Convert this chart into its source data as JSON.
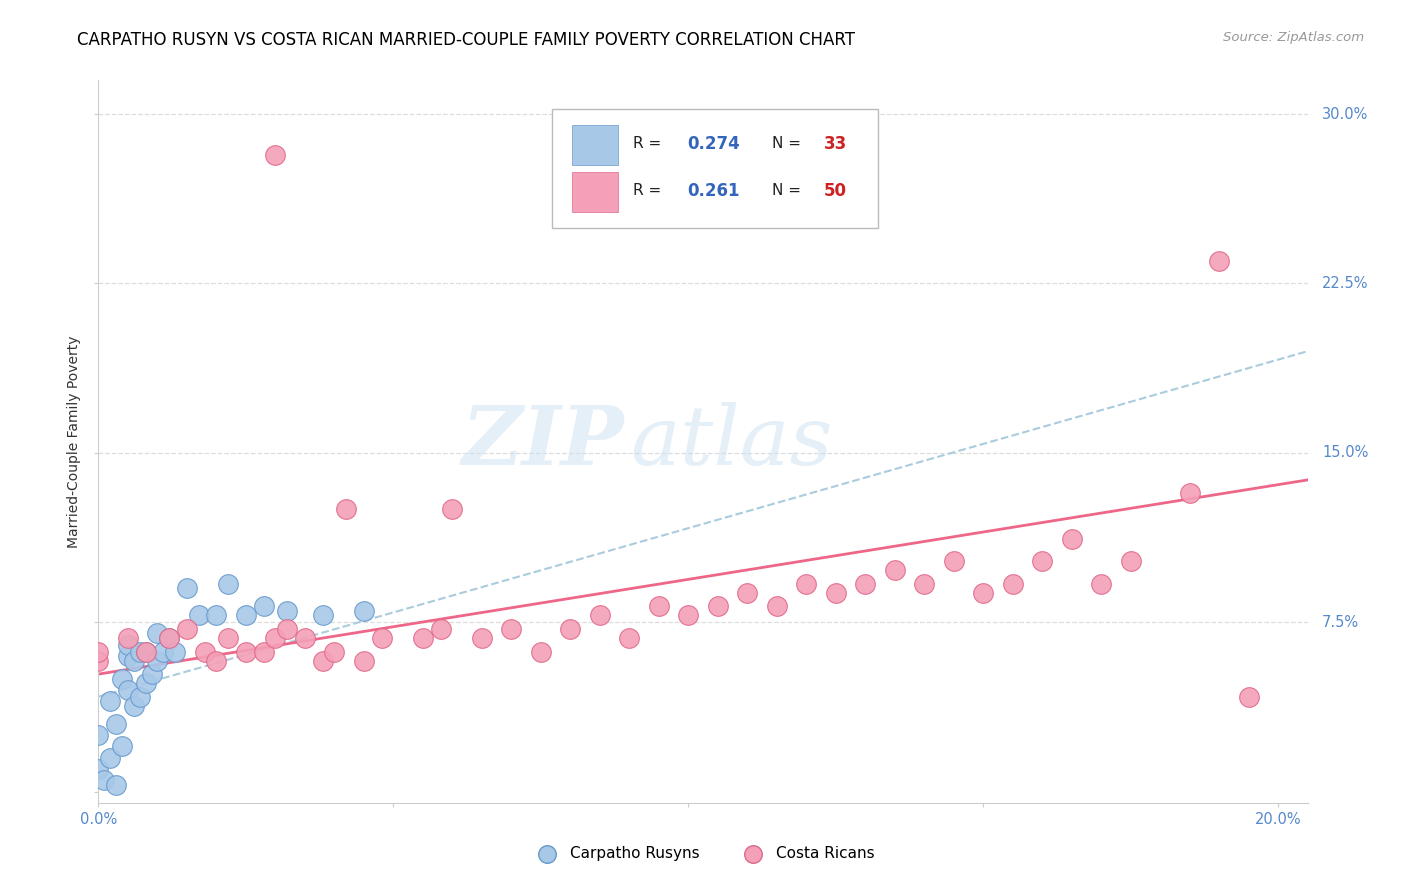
{
  "title": "CARPATHO RUSYN VS COSTA RICAN MARRIED-COUPLE FAMILY POVERTY CORRELATION CHART",
  "source": "Source: ZipAtlas.com",
  "ylabel": "Married-Couple Family Poverty",
  "watermark_zip": "ZIP",
  "watermark_atlas": "atlas",
  "xlim": [
    0.0,
    0.205
  ],
  "ylim": [
    -0.005,
    0.315
  ],
  "xticks": [
    0.0,
    0.05,
    0.1,
    0.15,
    0.2
  ],
  "xtick_labels": [
    "0.0%",
    "",
    "",
    "",
    "20.0%"
  ],
  "yticks": [
    0.0,
    0.075,
    0.15,
    0.225,
    0.3
  ],
  "ytick_labels": [
    "",
    "7.5%",
    "15.0%",
    "22.5%",
    "30.0%"
  ],
  "blue_color": "#a8c8e8",
  "blue_edge": "#6699cc",
  "pink_color": "#f4a0b8",
  "pink_edge": "#e06888",
  "blue_line_color": "#4499cc",
  "pink_line_color": "#ee6688",
  "dashed_line_color": "#aaccdd",
  "grid_color": "#dddddd",
  "tick_color": "#5588cc",
  "legend_R_color": "#3366bb",
  "legend_N_color": "#cc2222",
  "carpatho_x": [
    0.0,
    0.0,
    0.001,
    0.002,
    0.002,
    0.003,
    0.003,
    0.004,
    0.004,
    0.005,
    0.005,
    0.005,
    0.006,
    0.006,
    0.007,
    0.007,
    0.008,
    0.008,
    0.009,
    0.01,
    0.01,
    0.011,
    0.012,
    0.013,
    0.015,
    0.017,
    0.02,
    0.022,
    0.025,
    0.028,
    0.032,
    0.038,
    0.045
  ],
  "carpatho_y": [
    0.01,
    0.025,
    0.005,
    0.015,
    0.04,
    0.003,
    0.03,
    0.02,
    0.05,
    0.045,
    0.06,
    0.065,
    0.038,
    0.058,
    0.042,
    0.062,
    0.048,
    0.062,
    0.052,
    0.058,
    0.07,
    0.062,
    0.068,
    0.062,
    0.09,
    0.078,
    0.078,
    0.092,
    0.078,
    0.082,
    0.08,
    0.078,
    0.08
  ],
  "costarican_x": [
    0.0,
    0.0,
    0.005,
    0.008,
    0.012,
    0.015,
    0.018,
    0.02,
    0.022,
    0.025,
    0.028,
    0.03,
    0.032,
    0.035,
    0.038,
    0.04,
    0.03,
    0.042,
    0.045,
    0.048,
    0.055,
    0.058,
    0.06,
    0.065,
    0.07,
    0.075,
    0.08,
    0.085,
    0.09,
    0.095,
    0.1,
    0.105,
    0.11,
    0.115,
    0.12,
    0.125,
    0.13,
    0.135,
    0.14,
    0.145,
    0.15,
    0.155,
    0.16,
    0.165,
    0.17,
    0.175,
    0.185,
    0.19,
    0.195
  ],
  "costarican_y": [
    0.058,
    0.062,
    0.068,
    0.062,
    0.068,
    0.072,
    0.062,
    0.058,
    0.068,
    0.062,
    0.062,
    0.068,
    0.072,
    0.068,
    0.058,
    0.062,
    0.282,
    0.125,
    0.058,
    0.068,
    0.068,
    0.072,
    0.125,
    0.068,
    0.072,
    0.062,
    0.072,
    0.078,
    0.068,
    0.082,
    0.078,
    0.082,
    0.088,
    0.082,
    0.092,
    0.088,
    0.092,
    0.098,
    0.092,
    0.102,
    0.088,
    0.092,
    0.102,
    0.112,
    0.092,
    0.102,
    0.132,
    0.235,
    0.042
  ],
  "trend_blue_x0": 0.0,
  "trend_blue_y0": 0.042,
  "trend_blue_x1": 0.205,
  "trend_blue_y1": 0.195,
  "trend_pink_x0": 0.0,
  "trend_pink_y0": 0.052,
  "trend_pink_x1": 0.205,
  "trend_pink_y1": 0.138
}
